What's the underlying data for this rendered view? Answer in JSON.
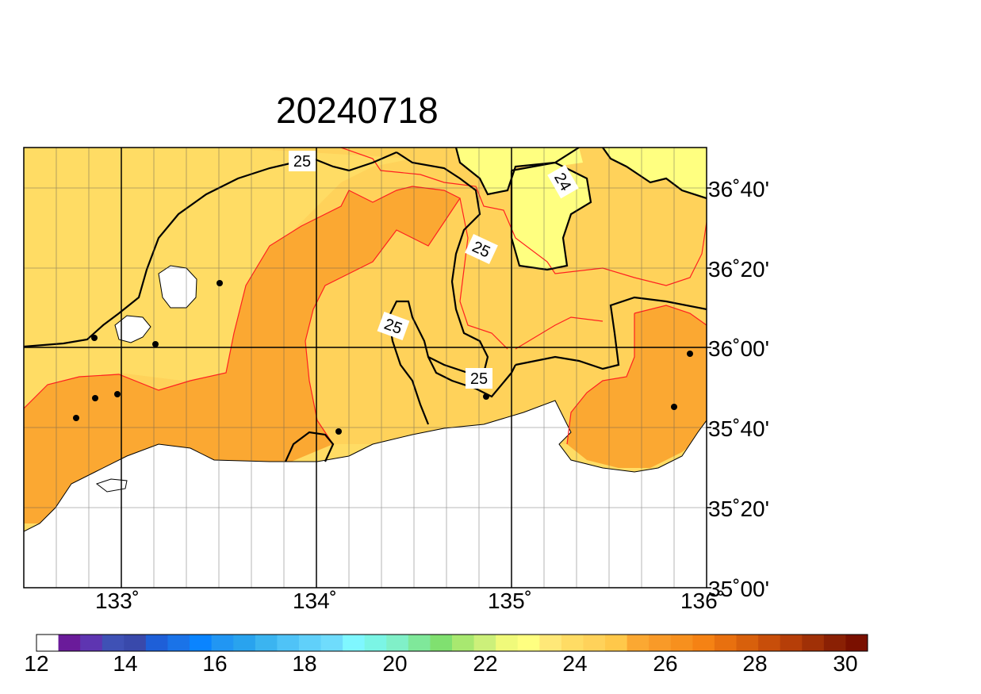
{
  "title": "20240718",
  "map": {
    "lon_labels": [
      "133˚",
      "134˚",
      "135˚",
      "136˚"
    ],
    "lat_labels": [
      "36˚40'",
      "36˚20'",
      "36˚00'",
      "35˚40'",
      "35˚20'",
      "35˚00'"
    ],
    "contour_labels": [
      "25",
      "24",
      "25",
      "25",
      "25"
    ],
    "colors": {
      "land": "#ffffff",
      "sst_24_25": "#ffdc64",
      "sst_25_26": "#ffd25a",
      "sst_26_27": "#fba832",
      "sst_23_24": "#ffff80",
      "contour_major": "#000000",
      "contour_minor": "#ff2020"
    }
  },
  "colorbar": {
    "tick_labels": [
      "12",
      "14",
      "16",
      "18",
      "20",
      "22",
      "24",
      "26",
      "28",
      "30"
    ],
    "colors": [
      "#ffffff",
      "#6a1b9a",
      "#5e35b1",
      "#3f51b5",
      "#3949ab",
      "#1e5fd8",
      "#1a73e8",
      "#0a84ff",
      "#2196f3",
      "#29a3ee",
      "#3bb4f0",
      "#4fc3f7",
      "#60d0fa",
      "#6fdcfc",
      "#7ff7ff",
      "#7bf5e5",
      "#80f0c8",
      "#7fe89a",
      "#80e070",
      "#a8e870",
      "#ccf07a",
      "#f0fa7a",
      "#ffff80",
      "#ffe878",
      "#ffdc64",
      "#ffd25a",
      "#ffc84a",
      "#fba832",
      "#f99a28",
      "#f7901e",
      "#f58214",
      "#e8700f",
      "#d8600c",
      "#c84e0a",
      "#b63e08",
      "#a03006",
      "#8a2004",
      "#7a1000"
    ]
  }
}
